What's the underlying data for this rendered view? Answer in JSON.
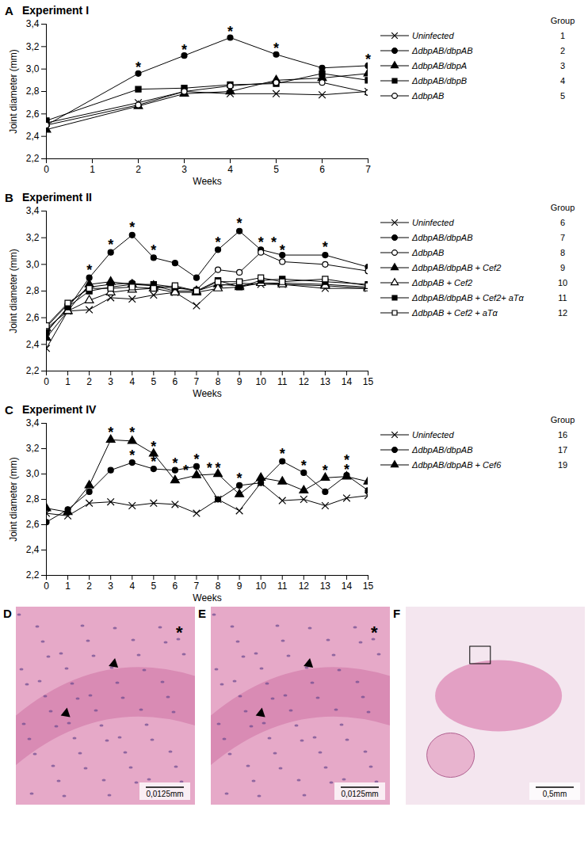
{
  "chart_data": [
    {
      "type": "line",
      "panel": "A",
      "title": "Experiment I",
      "x_label": "Weeks",
      "y_label": "Joint diameter (mm)",
      "x": [
        0,
        2,
        3,
        4,
        5,
        6,
        7
      ],
      "xlim": [
        0,
        7
      ],
      "xticks": [
        0,
        1,
        2,
        3,
        4,
        5,
        6,
        7
      ],
      "ylim": [
        2.2,
        3.4
      ],
      "yticks": [
        {
          "value": 2.2,
          "label": "2,2"
        },
        {
          "value": 2.4,
          "label": "2,4"
        },
        {
          "value": 2.6,
          "label": "2,6"
        },
        {
          "value": 2.8,
          "label": "2,8"
        },
        {
          "value": 3.0,
          "label": "3,0"
        },
        {
          "value": 3.2,
          "label": "3,2"
        },
        {
          "value": 3.4,
          "label": "3,4"
        }
      ],
      "legend": "right",
      "legend_title": "Group",
      "series": [
        {
          "name": "Uninfected",
          "group": "1",
          "color": "#000000",
          "marker": "x",
          "values": [
            2.52,
            2.7,
            2.8,
            2.78,
            2.78,
            2.77,
            2.8
          ]
        },
        {
          "name": "ΔdbpAB/dbpAB",
          "group": "2",
          "color": "#000000",
          "marker": "circle",
          "values": [
            2.5,
            2.96,
            3.12,
            3.28,
            3.13,
            3.01,
            3.03
          ]
        },
        {
          "name": "ΔdbpAB/dbpA",
          "group": "3",
          "color": "#000000",
          "marker": "triangle",
          "values": [
            2.46,
            2.67,
            2.78,
            2.8,
            2.9,
            2.92,
            2.96
          ]
        },
        {
          "name": "ΔdbpAB/dbpB",
          "group": "4",
          "color": "#000000",
          "marker": "square",
          "values": [
            2.54,
            2.82,
            2.83,
            2.86,
            2.87,
            2.96,
            2.9
          ]
        },
        {
          "name": "ΔdbpAB",
          "group": "5",
          "color": "#000000",
          "marker": "circle-open",
          "values": [
            2.5,
            2.68,
            2.8,
            2.85,
            2.88,
            2.88,
            2.79
          ]
        }
      ],
      "annotations": [
        {
          "x": 2,
          "y": 3.04,
          "text": "*"
        },
        {
          "x": 3,
          "y": 3.2,
          "text": "*"
        },
        {
          "x": 4,
          "y": 3.36,
          "text": "*"
        },
        {
          "x": 5,
          "y": 3.21,
          "text": "*"
        },
        {
          "x": 7,
          "y": 3.11,
          "text": "*"
        }
      ]
    },
    {
      "type": "line",
      "panel": "B",
      "title": "Experiment II",
      "x_label": "Weeks",
      "y_label": "Joint diameter (mm)",
      "x": [
        0,
        1,
        2,
        3,
        4,
        5,
        6,
        7,
        8,
        9,
        10,
        11,
        13,
        15
      ],
      "xlim": [
        0,
        15
      ],
      "xticks": [
        0,
        1,
        2,
        3,
        4,
        5,
        6,
        7,
        8,
        9,
        10,
        11,
        12,
        13,
        14,
        15
      ],
      "ylim": [
        2.2,
        3.4
      ],
      "yticks": [
        {
          "value": 2.2,
          "label": "2,2"
        },
        {
          "value": 2.4,
          "label": "2,4"
        },
        {
          "value": 2.6,
          "label": "2,6"
        },
        {
          "value": 2.8,
          "label": "2,8"
        },
        {
          "value": 3.0,
          "label": "3,0"
        },
        {
          "value": 3.2,
          "label": "3,2"
        },
        {
          "value": 3.4,
          "label": "3,4"
        }
      ],
      "legend": "right",
      "legend_title": "Group",
      "series": [
        {
          "name": "Uninfected",
          "group": "6",
          "color": "#000000",
          "marker": "x",
          "values": [
            2.37,
            2.65,
            2.66,
            2.75,
            2.74,
            2.77,
            2.79,
            2.69,
            2.84,
            2.86,
            2.85,
            2.85,
            2.82,
            2.82
          ]
        },
        {
          "name": "ΔdbpAB/dbpAB",
          "group": "7",
          "color": "#000000",
          "marker": "circle",
          "values": [
            2.5,
            2.67,
            2.9,
            3.09,
            3.22,
            3.05,
            3.01,
            2.9,
            3.11,
            3.25,
            3.11,
            3.07,
            3.07,
            2.98
          ]
        },
        {
          "name": "ΔdbpAB",
          "group": "8",
          "color": "#000000",
          "marker": "circle-open",
          "values": [
            2.53,
            2.7,
            2.83,
            2.85,
            2.86,
            2.84,
            2.82,
            2.81,
            2.96,
            2.94,
            3.09,
            3.02,
            3.0,
            2.95
          ]
        },
        {
          "name": "ΔdbpAB/dbpAB + Cef2",
          "group": "9",
          "color": "#000000",
          "marker": "triangle",
          "values": [
            2.45,
            2.65,
            2.85,
            2.87,
            2.85,
            2.84,
            2.8,
            2.8,
            2.85,
            2.84,
            2.86,
            2.86,
            2.85,
            2.83
          ]
        },
        {
          "name": "ΔdbpAB + Cef2",
          "group": "10",
          "color": "#000000",
          "marker": "triangle-open",
          "values": [
            2.52,
            2.65,
            2.73,
            2.79,
            2.81,
            2.82,
            2.79,
            2.79,
            2.82,
            2.83,
            2.86,
            2.85,
            2.84,
            2.82
          ]
        },
        {
          "name": "ΔdbpAB/dbpAB + Cef2+ aTα",
          "group": "11",
          "color": "#000000",
          "marker": "square",
          "values": [
            2.49,
            2.68,
            2.8,
            2.83,
            2.85,
            2.85,
            2.83,
            2.8,
            2.88,
            2.83,
            2.88,
            2.89,
            2.87,
            2.85
          ]
        },
        {
          "name": "ΔdbpAB + Cef2 + aTα",
          "group": "12",
          "color": "#000000",
          "marker": "square-open",
          "values": [
            2.54,
            2.71,
            2.82,
            2.82,
            2.83,
            2.82,
            2.84,
            2.8,
            2.87,
            2.87,
            2.9,
            2.87,
            2.89,
            2.84
          ]
        }
      ],
      "annotations": [
        {
          "x": 2,
          "y": 2.98,
          "text": "*"
        },
        {
          "x": 3,
          "y": 3.17,
          "text": "*"
        },
        {
          "x": 4,
          "y": 3.3,
          "text": "*"
        },
        {
          "x": 5,
          "y": 3.13,
          "text": "*"
        },
        {
          "x": 8,
          "y": 3.19,
          "text": "*"
        },
        {
          "x": 9,
          "y": 3.33,
          "text": "*"
        },
        {
          "x": 10,
          "y": 3.19,
          "text": "*"
        },
        {
          "x": 10.6,
          "y": 3.19,
          "text": "*"
        },
        {
          "x": 11,
          "y": 3.13,
          "text": "*"
        },
        {
          "x": 13,
          "y": 3.15,
          "text": "*"
        }
      ]
    },
    {
      "type": "line",
      "panel": "C",
      "title": "Experiment IV",
      "x_label": "Weeks",
      "y_label": "Joint diameter (mm)",
      "x": [
        0,
        1,
        2,
        3,
        4,
        5,
        6,
        7,
        8,
        9,
        10,
        11,
        12,
        13,
        14,
        15
      ],
      "xlim": [
        0,
        15
      ],
      "xticks": [
        0,
        1,
        2,
        3,
        4,
        5,
        6,
        7,
        8,
        9,
        10,
        11,
        12,
        13,
        14,
        15
      ],
      "ylim": [
        2.2,
        3.4
      ],
      "yticks": [
        {
          "value": 2.2,
          "label": "2,2"
        },
        {
          "value": 2.4,
          "label": "2,4"
        },
        {
          "value": 2.6,
          "label": "2,6"
        },
        {
          "value": 2.8,
          "label": "2,8"
        },
        {
          "value": 3.0,
          "label": "3,0"
        },
        {
          "value": 3.2,
          "label": "3,2"
        },
        {
          "value": 3.4,
          "label": "3,4"
        }
      ],
      "legend": "right",
      "legend_title": "Group",
      "series": [
        {
          "name": "Uninfected",
          "group": "16",
          "color": "#000000",
          "marker": "x",
          "values": [
            2.69,
            2.67,
            2.77,
            2.78,
            2.75,
            2.77,
            2.76,
            2.69,
            2.8,
            2.71,
            2.93,
            2.79,
            2.8,
            2.75,
            2.81,
            2.83
          ]
        },
        {
          "name": "ΔdbpAB/dbpAB",
          "group": "17",
          "color": "#000000",
          "marker": "circle",
          "values": [
            2.62,
            2.72,
            2.86,
            3.03,
            3.09,
            3.04,
            3.03,
            3.06,
            2.8,
            2.91,
            2.93,
            3.1,
            3.01,
            2.86,
            2.99,
            2.87
          ]
        },
        {
          "name": "ΔdbpAB/dbpAB + Cef6",
          "group": "19",
          "color": "#000000",
          "marker": "triangle",
          "values": [
            2.73,
            2.7,
            2.91,
            3.27,
            3.26,
            3.16,
            2.95,
            2.99,
            3.0,
            2.84,
            2.97,
            2.94,
            2.87,
            2.97,
            2.98,
            2.94
          ]
        }
      ],
      "annotations": [
        {
          "x": 3,
          "y": 3.35,
          "text": "*"
        },
        {
          "x": 4,
          "y": 3.35,
          "text": "*"
        },
        {
          "x": 4,
          "y": 3.17,
          "text": "*"
        },
        {
          "x": 5,
          "y": 3.24,
          "text": "*"
        },
        {
          "x": 5,
          "y": 3.12,
          "text": "*"
        },
        {
          "x": 6,
          "y": 3.11,
          "text": "*"
        },
        {
          "x": 6.5,
          "y": 3.05,
          "text": "*"
        },
        {
          "x": 7,
          "y": 3.14,
          "text": "*"
        },
        {
          "x": 7.6,
          "y": 3.07,
          "text": "*"
        },
        {
          "x": 8,
          "y": 3.07,
          "text": "*"
        },
        {
          "x": 9,
          "y": 2.99,
          "text": "*"
        },
        {
          "x": 11,
          "y": 3.18,
          "text": "*"
        },
        {
          "x": 12,
          "y": 3.09,
          "text": "*"
        },
        {
          "x": 13,
          "y": 3.05,
          "text": "*"
        },
        {
          "x": 14,
          "y": 3.13,
          "text": "*"
        },
        {
          "x": 14,
          "y": 3.06,
          "text": "*"
        }
      ]
    }
  ],
  "image_panels": [
    {
      "label": "D",
      "scale_bar": "0,0125mm",
      "marks": [
        "*"
      ]
    },
    {
      "label": "E",
      "scale_bar": "0,0125mm",
      "marks": [
        "*"
      ]
    },
    {
      "label": "F",
      "scale_bar": "0,5mm",
      "marks": []
    }
  ]
}
